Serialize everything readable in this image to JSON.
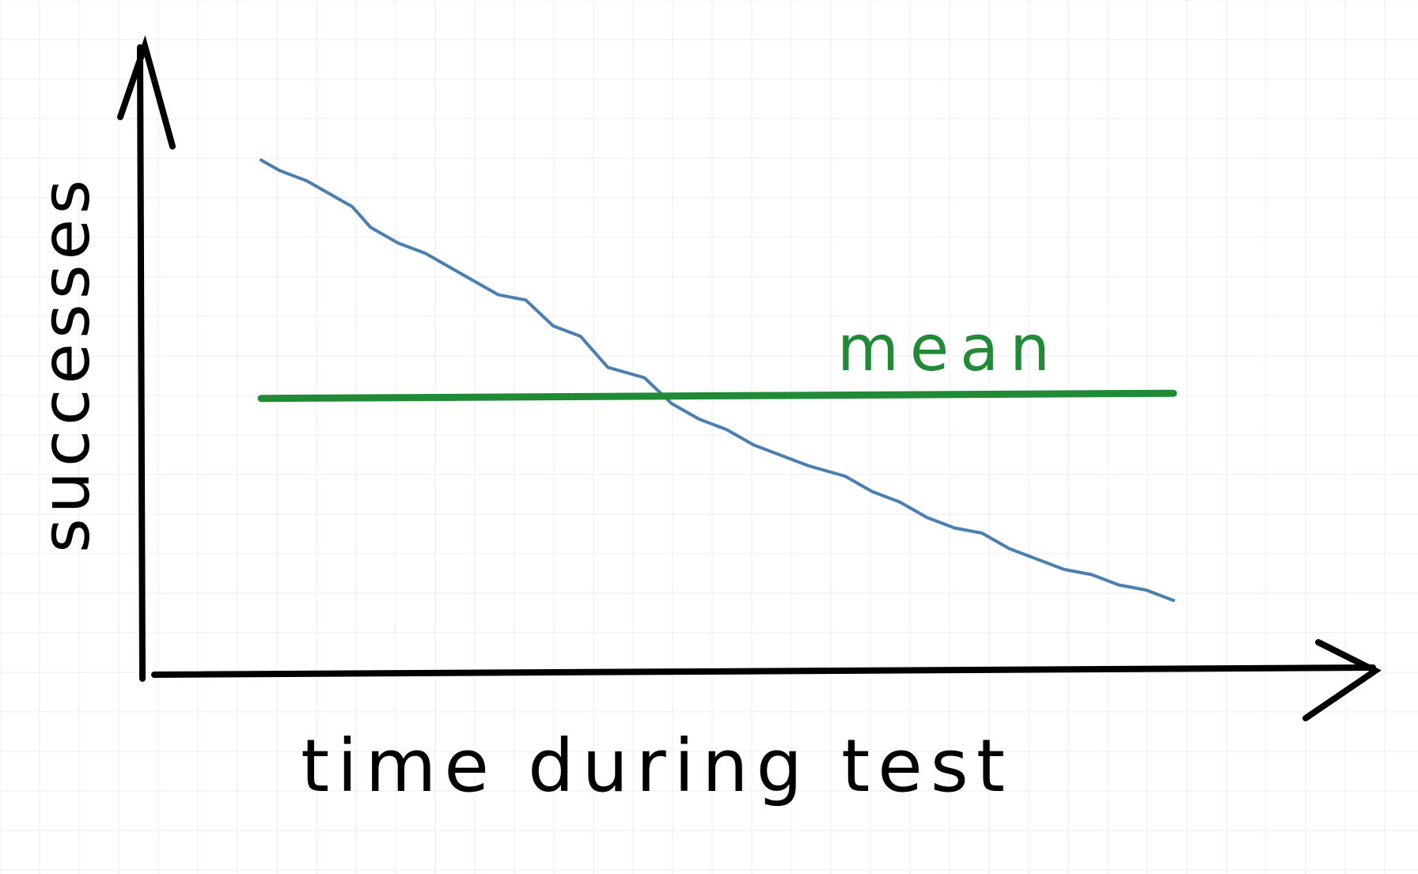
{
  "chart_data": {
    "type": "line",
    "xlabel": "time during test",
    "ylabel": "successes",
    "grid": true,
    "series": [
      {
        "label": "",
        "color": "#4a7fb0",
        "points": [
          [
            0.0,
            0.92
          ],
          [
            0.02,
            0.9
          ],
          [
            0.05,
            0.88
          ],
          [
            0.08,
            0.85
          ],
          [
            0.1,
            0.83
          ],
          [
            0.12,
            0.79
          ],
          [
            0.15,
            0.76
          ],
          [
            0.18,
            0.74
          ],
          [
            0.2,
            0.72
          ],
          [
            0.23,
            0.69
          ],
          [
            0.26,
            0.66
          ],
          [
            0.29,
            0.65
          ],
          [
            0.32,
            0.6
          ],
          [
            0.35,
            0.58
          ],
          [
            0.38,
            0.52
          ],
          [
            0.42,
            0.5
          ],
          [
            0.45,
            0.45
          ],
          [
            0.48,
            0.42
          ],
          [
            0.51,
            0.4
          ],
          [
            0.54,
            0.37
          ],
          [
            0.57,
            0.35
          ],
          [
            0.6,
            0.33
          ],
          [
            0.64,
            0.31
          ],
          [
            0.67,
            0.28
          ],
          [
            0.7,
            0.26
          ],
          [
            0.73,
            0.23
          ],
          [
            0.76,
            0.21
          ],
          [
            0.79,
            0.2
          ],
          [
            0.82,
            0.17
          ],
          [
            0.85,
            0.15
          ],
          [
            0.88,
            0.13
          ],
          [
            0.91,
            0.12
          ],
          [
            0.94,
            0.1
          ],
          [
            0.97,
            0.09
          ],
          [
            1.0,
            0.07
          ]
        ]
      },
      {
        "label": "mean",
        "color": "#218a36",
        "points": [
          [
            0.0,
            0.46
          ],
          [
            1.0,
            0.47
          ]
        ]
      }
    ],
    "annotations": [
      {
        "text": "mean",
        "color": "#218a36"
      }
    ]
  },
  "colors": {
    "axis": "#000000",
    "trend_line": "#4a7fb0",
    "mean_line": "#218a36",
    "grid": "#eeeeee",
    "background": "#ffffff"
  }
}
